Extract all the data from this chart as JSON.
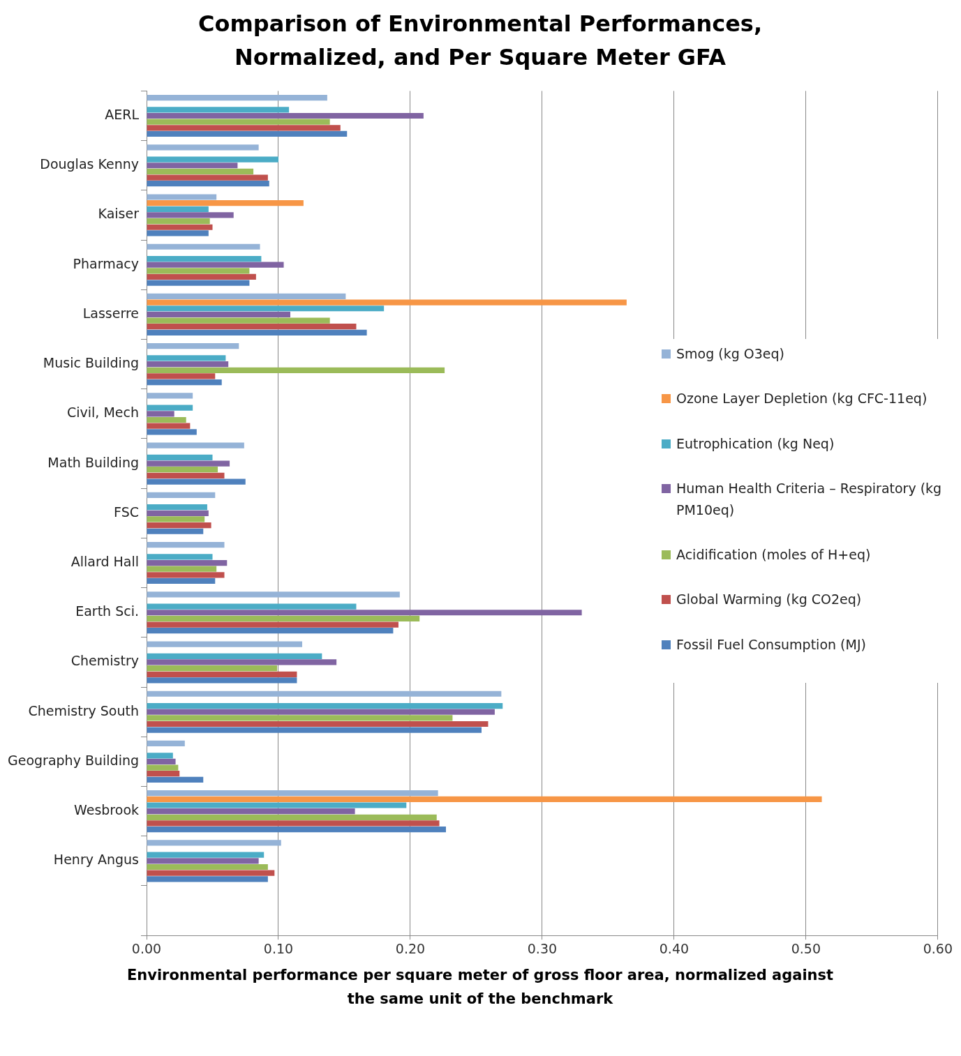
{
  "chart_data": {
    "type": "bar",
    "orientation": "horizontal",
    "title": "Comparison of Environmental Performances, Normalized, and Per Square Meter GFA",
    "xlabel": "Environmental performance per square meter of gross floor area, normalized against the same unit of the benchmark",
    "categories": [
      "AERL",
      "Douglas Kenny",
      "Kaiser",
      "Pharmacy",
      "Lasserre",
      "Music Building",
      "Civil, Mech",
      "Math Building",
      "FSC",
      "Allard Hall",
      "Earth Sci.",
      "Chemistry",
      "Chemistry South",
      "Geography Building",
      "Wesbrook",
      "Henry Angus",
      null
    ],
    "series": [
      {
        "name": "Smog (kg O3eq)",
        "color": "#95b3d7",
        "values": [
          0.137,
          0.085,
          0.053,
          0.086,
          0.151,
          0.07,
          0.035,
          0.074,
          0.052,
          0.059,
          0.192,
          0.118,
          0.269,
          0.029,
          0.221,
          0.102,
          null
        ]
      },
      {
        "name": "Ozone Layer Depletion (kg CFC-11eq)",
        "color": "#f79646",
        "values": [
          null,
          null,
          0.119,
          null,
          0.364,
          null,
          null,
          null,
          null,
          null,
          null,
          null,
          null,
          null,
          0.512,
          null,
          null
        ]
      },
      {
        "name": "Eutrophication (kg Neq)",
        "color": "#4bacc6",
        "values": [
          0.108,
          0.1,
          0.047,
          0.087,
          0.18,
          0.06,
          0.035,
          0.05,
          0.046,
          0.05,
          0.159,
          0.133,
          0.27,
          0.02,
          0.197,
          0.089,
          null
        ]
      },
      {
        "name": "Human Health Criteria – Respiratory (kg PM10eq)",
        "color": "#8064a2",
        "values": [
          0.21,
          0.069,
          0.066,
          0.104,
          0.109,
          0.062,
          0.021,
          0.063,
          0.047,
          0.061,
          0.33,
          0.144,
          0.264,
          0.022,
          0.158,
          0.085,
          null
        ]
      },
      {
        "name": "Acidification (moles of H+eq)",
        "color": "#9bbb59",
        "values": [
          0.139,
          0.081,
          0.048,
          0.078,
          0.139,
          0.226,
          0.03,
          0.054,
          0.044,
          0.053,
          0.207,
          0.099,
          0.232,
          0.024,
          0.22,
          0.092,
          null
        ]
      },
      {
        "name": "Global Warming (kg CO2eq)",
        "color": "#c0504d",
        "values": [
          0.147,
          0.092,
          0.05,
          0.083,
          0.159,
          0.052,
          0.033,
          0.059,
          0.049,
          0.059,
          0.191,
          0.114,
          0.259,
          0.025,
          0.222,
          0.097,
          null
        ]
      },
      {
        "name": "Fossil Fuel Consumption (MJ)",
        "color": "#4f81bd",
        "values": [
          0.152,
          0.093,
          0.047,
          0.078,
          0.167,
          0.057,
          0.038,
          0.075,
          0.043,
          0.052,
          0.187,
          0.114,
          0.254,
          0.043,
          0.227,
          0.092,
          null
        ]
      }
    ],
    "xlim": [
      0,
      0.6
    ],
    "xticks": [
      {
        "value": 0,
        "label": "0.00"
      },
      {
        "value": 0.1,
        "label": "0.10"
      },
      {
        "value": 0.2,
        "label": "0.20"
      },
      {
        "value": 0.3,
        "label": "0.30"
      },
      {
        "value": 0.4,
        "label": "0.40"
      },
      {
        "value": 0.5,
        "label": "0.50"
      },
      {
        "value": 0.6,
        "label": "0.60"
      }
    ],
    "grid": "x",
    "legend": "right"
  }
}
